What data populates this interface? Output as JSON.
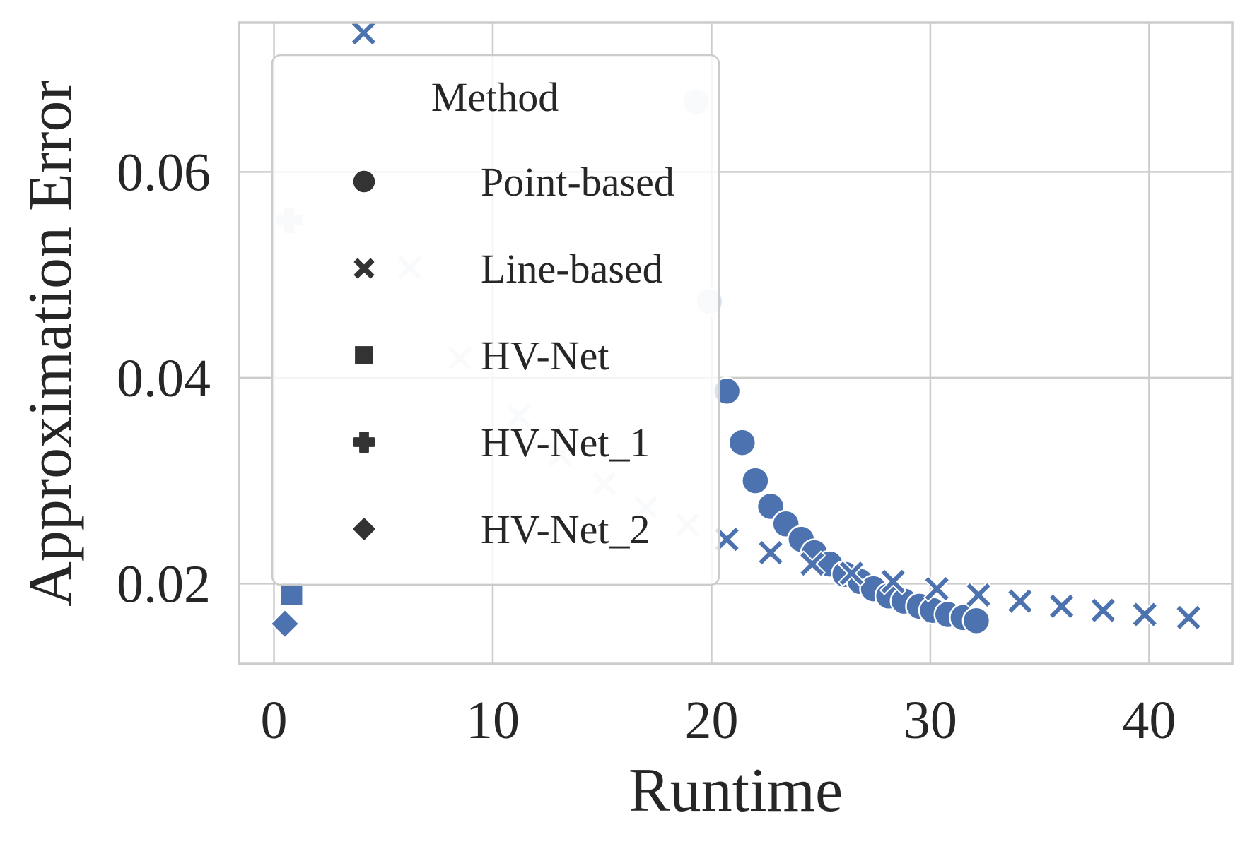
{
  "chart_data": {
    "type": "scatter",
    "xlabel": "Runtime",
    "ylabel": "Approximation Error",
    "xlim": [
      -1.6,
      43.8
    ],
    "ylim": [
      0.0122,
      0.0745
    ],
    "xticks": [
      0,
      10,
      20,
      30,
      40
    ],
    "yticks": [
      0.02,
      0.04,
      0.06
    ],
    "xtick_labels": [
      "0",
      "10",
      "20",
      "30",
      "40"
    ],
    "ytick_labels": [
      "0.02",
      "0.04",
      "0.06"
    ],
    "grid": true,
    "legend": {
      "title": "Method",
      "placement": "upper-left",
      "entries": [
        {
          "label": "Point-based",
          "marker": "circle"
        },
        {
          "label": "Line-based",
          "marker": "x"
        },
        {
          "label": "HV-Net",
          "marker": "square"
        },
        {
          "label": "HV-Net_1",
          "marker": "plus"
        },
        {
          "label": "HV-Net_2",
          "marker": "diamond"
        }
      ]
    },
    "colors": {
      "dark": "#4c72b0",
      "light": "#dce3f0",
      "legend_marker": "#333333"
    },
    "series": [
      {
        "marker": "circle",
        "points": [
          {
            "x": 19.3,
            "y": 0.0668,
            "shade": "light"
          },
          {
            "x": 19.9,
            "y": 0.0474,
            "shade": "light"
          },
          {
            "x": 20.7,
            "y": 0.0387,
            "shade": "dark"
          },
          {
            "x": 21.4,
            "y": 0.0337,
            "shade": "dark"
          },
          {
            "x": 22.0,
            "y": 0.03,
            "shade": "dark"
          },
          {
            "x": 22.7,
            "y": 0.0275,
            "shade": "dark"
          },
          {
            "x": 23.4,
            "y": 0.0258,
            "shade": "dark"
          },
          {
            "x": 24.1,
            "y": 0.0243,
            "shade": "dark"
          },
          {
            "x": 24.7,
            "y": 0.023,
            "shade": "dark"
          },
          {
            "x": 25.4,
            "y": 0.0219,
            "shade": "dark"
          },
          {
            "x": 26.1,
            "y": 0.0209,
            "shade": "dark"
          },
          {
            "x": 26.8,
            "y": 0.0202,
            "shade": "dark"
          },
          {
            "x": 27.4,
            "y": 0.0195,
            "shade": "dark"
          },
          {
            "x": 28.1,
            "y": 0.0188,
            "shade": "dark"
          },
          {
            "x": 28.8,
            "y": 0.0183,
            "shade": "dark"
          },
          {
            "x": 29.5,
            "y": 0.0178,
            "shade": "dark"
          },
          {
            "x": 30.1,
            "y": 0.0174,
            "shade": "dark"
          },
          {
            "x": 30.8,
            "y": 0.017,
            "shade": "dark"
          },
          {
            "x": 31.5,
            "y": 0.0167,
            "shade": "dark"
          },
          {
            "x": 32.1,
            "y": 0.0164,
            "shade": "dark"
          }
        ]
      },
      {
        "marker": "x",
        "points": [
          {
            "x": 4.1,
            "y": 0.0735,
            "shade": "dark"
          },
          {
            "x": 6.2,
            "y": 0.0507,
            "shade": "light"
          },
          {
            "x": 8.5,
            "y": 0.0419,
            "shade": "light"
          },
          {
            "x": 11.2,
            "y": 0.0363,
            "shade": "light"
          },
          {
            "x": 13.1,
            "y": 0.0325,
            "shade": "light"
          },
          {
            "x": 15.1,
            "y": 0.0297,
            "shade": "light"
          },
          {
            "x": 17.0,
            "y": 0.0274,
            "shade": "light"
          },
          {
            "x": 18.9,
            "y": 0.0257,
            "shade": "light"
          },
          {
            "x": 20.7,
            "y": 0.0243,
            "shade": "dark"
          },
          {
            "x": 22.7,
            "y": 0.023,
            "shade": "dark"
          },
          {
            "x": 24.6,
            "y": 0.0219,
            "shade": "dark"
          },
          {
            "x": 26.4,
            "y": 0.021,
            "shade": "dark"
          },
          {
            "x": 28.3,
            "y": 0.0202,
            "shade": "dark"
          },
          {
            "x": 30.3,
            "y": 0.0195,
            "shade": "dark"
          },
          {
            "x": 32.2,
            "y": 0.0189,
            "shade": "dark"
          },
          {
            "x": 34.1,
            "y": 0.0183,
            "shade": "dark"
          },
          {
            "x": 36.0,
            "y": 0.0178,
            "shade": "dark"
          },
          {
            "x": 37.9,
            "y": 0.0174,
            "shade": "dark"
          },
          {
            "x": 39.8,
            "y": 0.017,
            "shade": "dark"
          },
          {
            "x": 41.8,
            "y": 0.0167,
            "shade": "dark"
          }
        ]
      },
      {
        "marker": "square",
        "points": [
          {
            "x": 0.8,
            "y": 0.019,
            "shade": "dark"
          }
        ]
      },
      {
        "marker": "plus",
        "points": [
          {
            "x": 0.7,
            "y": 0.0553,
            "shade": "light"
          }
        ]
      },
      {
        "marker": "diamond",
        "points": [
          {
            "x": 0.5,
            "y": 0.0161,
            "shade": "dark"
          }
        ]
      }
    ]
  }
}
